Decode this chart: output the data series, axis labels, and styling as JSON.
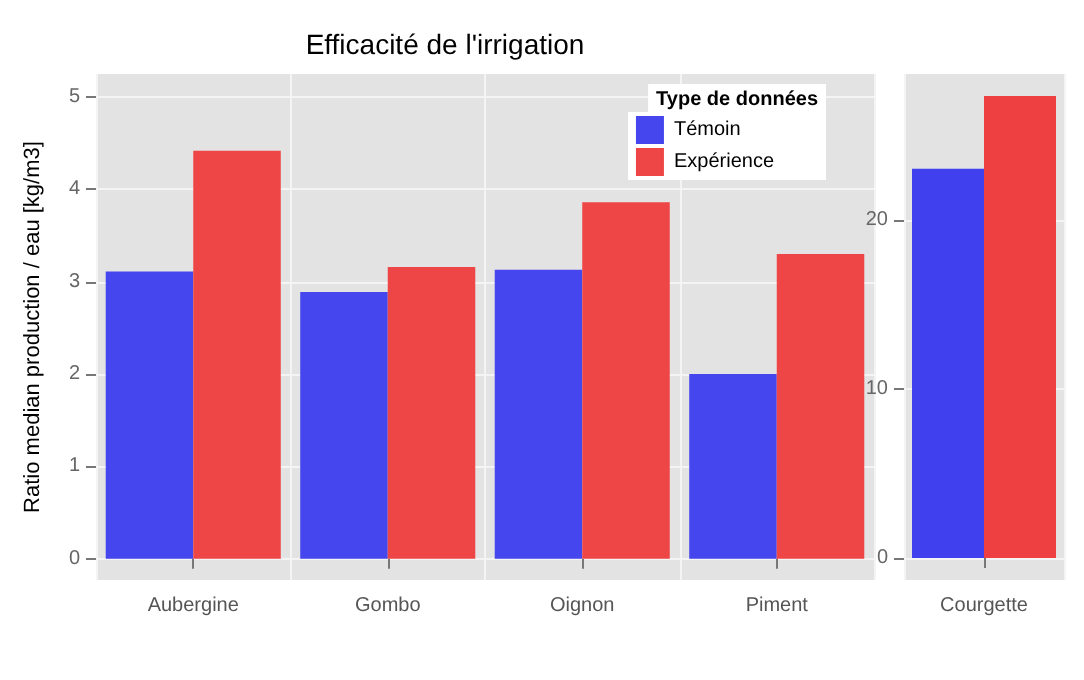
{
  "chart_data": [
    {
      "type": "bar",
      "title": "Efficacité de l'irrigation",
      "ylabel": "Ratio median production / eau [kg/m3]",
      "legend_title": "Type de données",
      "legend": "top right",
      "grid": true,
      "categories": [
        "Aubergine",
        "Gombo",
        "Oignon",
        "Piment"
      ],
      "series": [
        {
          "name": "Témoin",
          "color": "#4646ee",
          "values": [
            3.11,
            2.89,
            3.13,
            2.0
          ]
        },
        {
          "name": "Expérience",
          "color": "#ee4646",
          "values": [
            4.42,
            3.16,
            3.86,
            3.3
          ]
        }
      ],
      "ylim": [
        -0.23,
        5.25
      ],
      "yticks": [
        0,
        1,
        2,
        3,
        4,
        5
      ]
    },
    {
      "type": "bar",
      "grid": true,
      "categories": [
        "Courgette"
      ],
      "series": [
        {
          "color": "#4040ee",
          "values": [
            23.0
          ]
        },
        {
          "color": "#ee4040",
          "values": [
            27.3
          ]
        }
      ],
      "ylim": [
        -1.3,
        28.6
      ],
      "yticks": [
        0,
        10,
        20
      ]
    }
  ]
}
